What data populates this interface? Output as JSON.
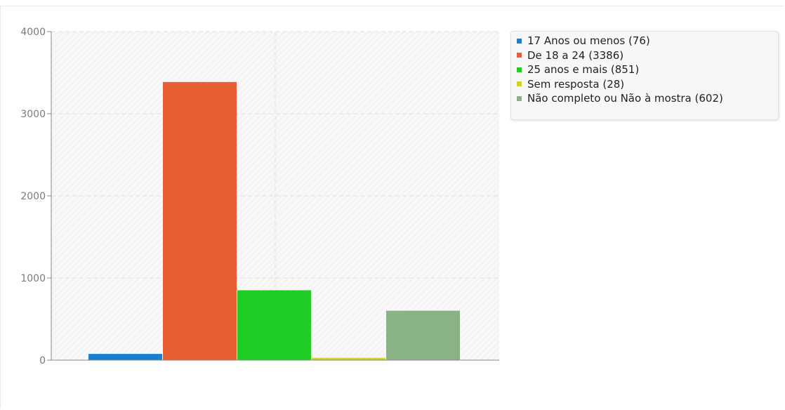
{
  "chart_data": {
    "type": "bar",
    "title": "",
    "xlabel": "",
    "ylabel": "",
    "ylim": [
      0,
      4000
    ],
    "yticks": [
      0,
      1000,
      2000,
      3000,
      4000
    ],
    "grid": true,
    "legend_position": "right",
    "categories": [
      "17 Anos ou menos (76)",
      "De 18 a 24 (3386)",
      "25 anos e mais (851)",
      "Sem resposta (28)",
      "Não completo ou Não à mostra (602)"
    ],
    "values": [
      76,
      3386,
      851,
      28,
      602
    ],
    "colors": [
      "#1a7ed4",
      "#e85f33",
      "#20cd24",
      "#d0d127",
      "#8ab385"
    ]
  }
}
